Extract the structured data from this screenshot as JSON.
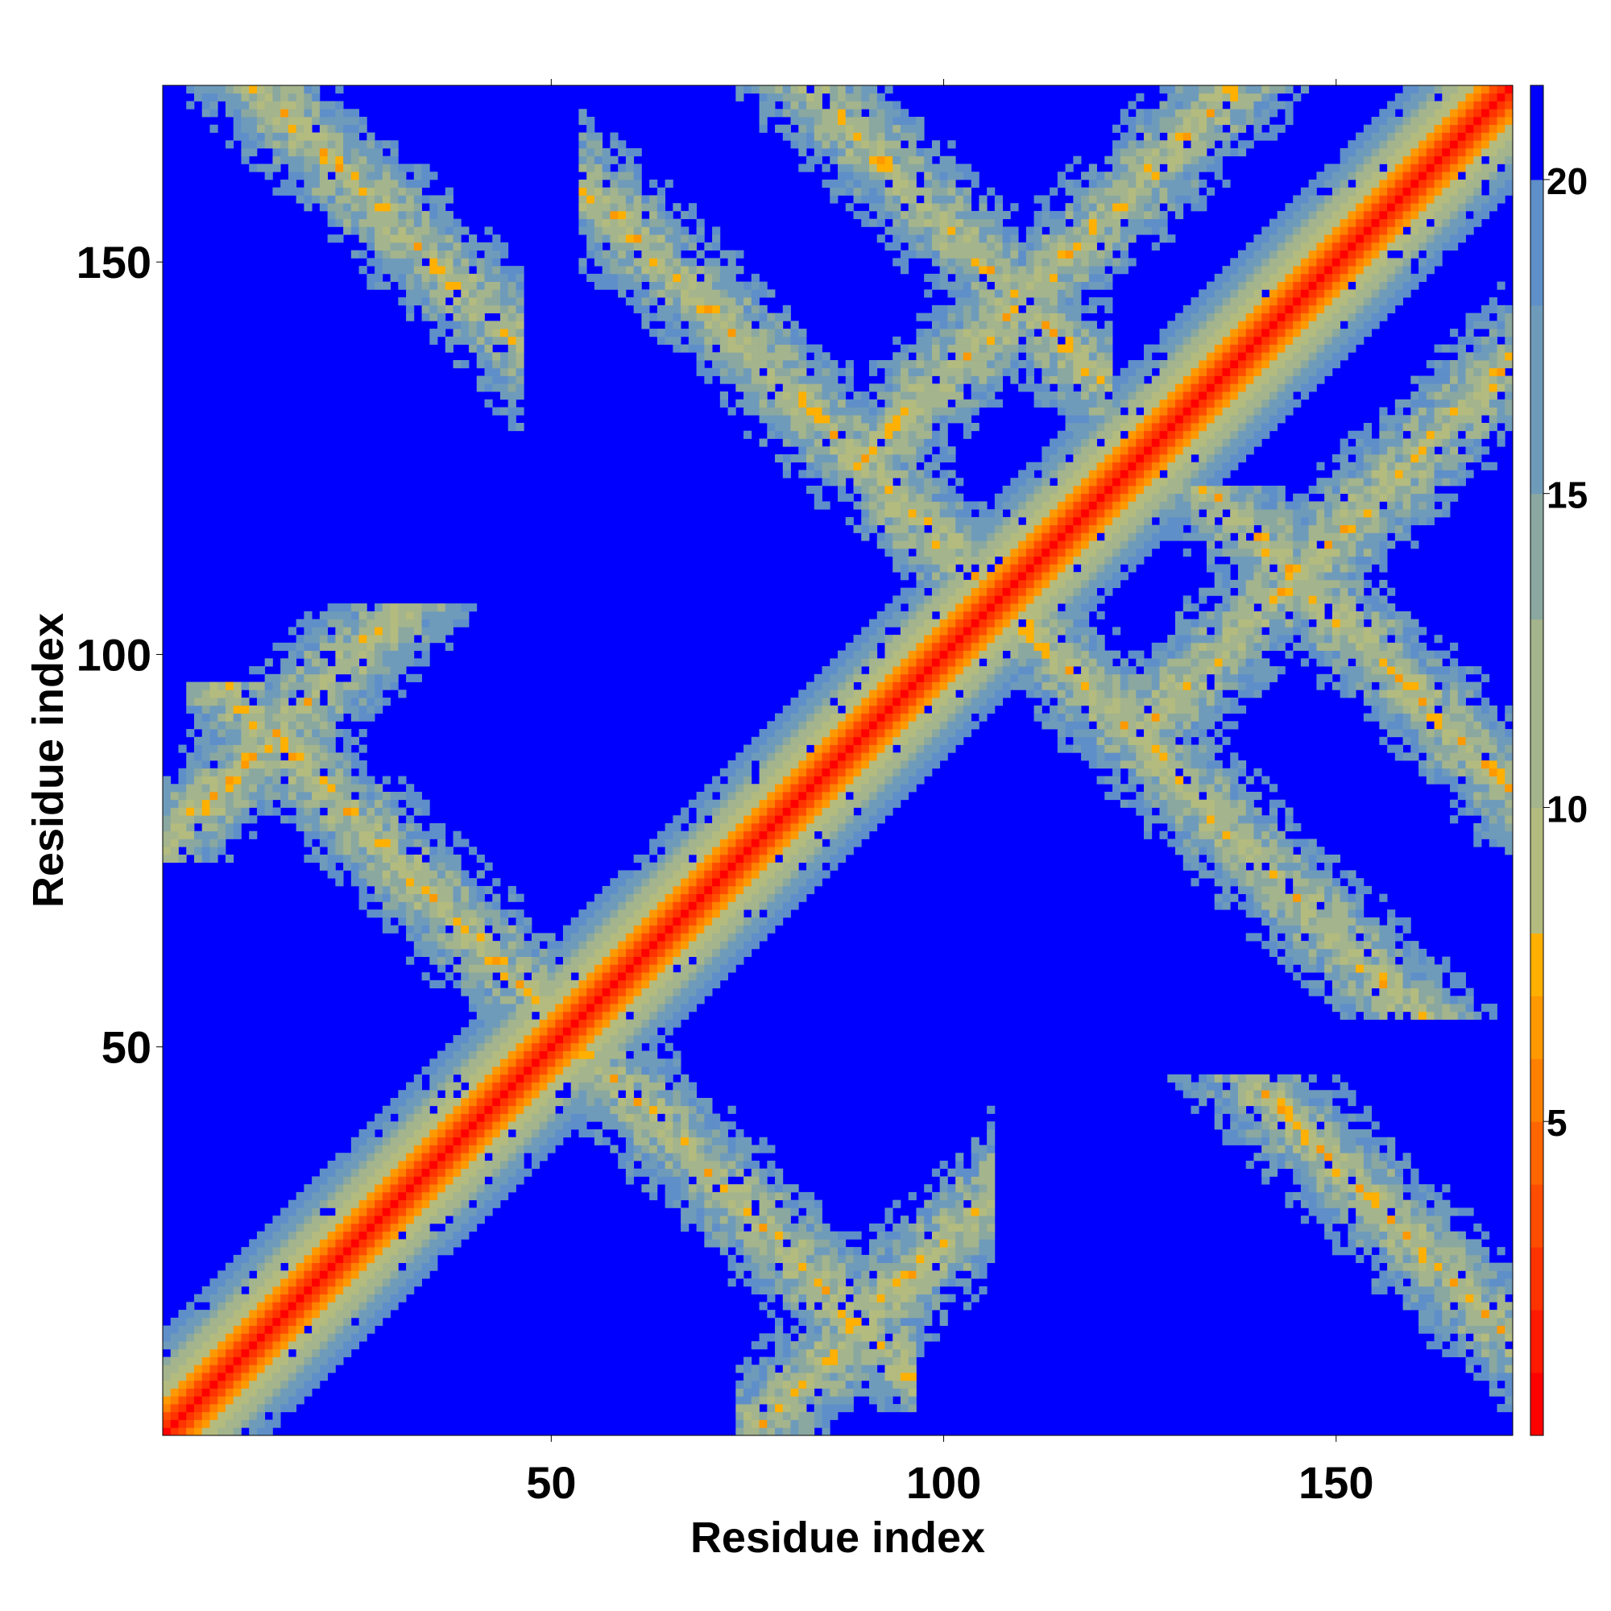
{
  "chart_data": {
    "type": "heatmap",
    "title": "",
    "xlabel": "Residue index",
    "ylabel": "Residue index",
    "n_residues": 172,
    "xlim": [
      1,
      172
    ],
    "ylim": [
      1,
      172
    ],
    "xticks": [
      50,
      100,
      150
    ],
    "yticks": [
      50,
      100,
      150
    ],
    "colorbar": {
      "range": [
        0,
        21.5
      ],
      "ticks": [
        5,
        10,
        15,
        20
      ],
      "levels": [
        {
          "max": 1,
          "color": "#ff0000"
        },
        {
          "max": 2,
          "color": "#ff1a00"
        },
        {
          "max": 3,
          "color": "#ff3300"
        },
        {
          "max": 4,
          "color": "#ff4d00"
        },
        {
          "max": 5,
          "color": "#ff6600"
        },
        {
          "max": 6,
          "color": "#ff8000"
        },
        {
          "max": 7,
          "color": "#ff9900"
        },
        {
          "max": 8,
          "color": "#ffb000"
        },
        {
          "max": 10,
          "color": "#b4bb7f"
        },
        {
          "max": 13,
          "color": "#a4b48c"
        },
        {
          "max": 15,
          "color": "#8aa8a0"
        },
        {
          "max": 18,
          "color": "#6f9bbb"
        },
        {
          "max": 20,
          "color": "#5f8fc8"
        },
        {
          "max": 21.5,
          "color": "#0000ff"
        }
      ]
    },
    "structure": {
      "diagonal": "distance grows with |i - j|; red near 0, orange to ~8, green/blue bands up to ~20",
      "contact_bands": [
        {
          "i": [
            10,
            68
          ],
          "j": [
            30,
            90
          ],
          "sense": "antiparallel",
          "i_sum": 104
        },
        {
          "i": [
            60,
            110
          ],
          "j": [
            110,
            172
          ],
          "sense": "antiparallel",
          "i_sum": 214
        },
        {
          "i": [
            10,
            40
          ],
          "j": [
            130,
            172
          ],
          "sense": "antiparallel",
          "i_sum": 185
        },
        {
          "i": [
            50,
            115
          ],
          "j": [
            120,
            172
          ],
          "sense": "antiparallel",
          "i_sum": 255
        },
        {
          "i": [
            5,
            50
          ],
          "j": [
            80,
            100
          ],
          "sense": "parallel"
        },
        {
          "i": [
            95,
            150
          ],
          "j": [
            130,
            172
          ],
          "sense": "parallel"
        }
      ],
      "background": "blue (> 20)"
    }
  }
}
